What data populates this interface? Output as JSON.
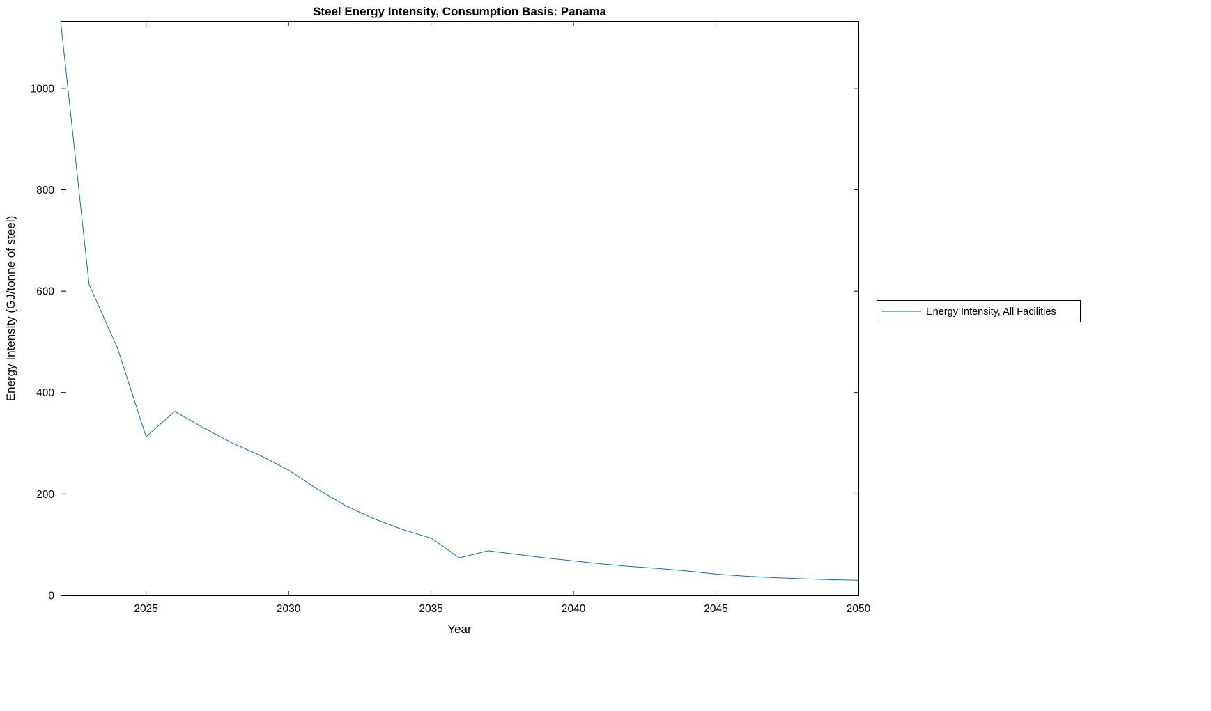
{
  "chart_data": {
    "type": "line",
    "title": "Steel Energy Intensity, Consumption Basis: Panama",
    "xlabel": "Year",
    "ylabel": "Energy Intensity (GJ/tonne of steel)",
    "xlim": [
      2022,
      2050
    ],
    "ylim": [
      0,
      1133
    ],
    "xticks": [
      2025,
      2030,
      2035,
      2040,
      2045,
      2050
    ],
    "yticks": [
      0,
      200,
      400,
      600,
      800,
      1000
    ],
    "grid": false,
    "legend": {
      "position": "right-outside",
      "entries": [
        "Energy Intensity, All Facilities"
      ]
    },
    "series": [
      {
        "name": "Energy Intensity, All Facilities",
        "color": "#0072BD",
        "x": [
          2022,
          2023,
          2024,
          2025,
          2026,
          2027,
          2028,
          2029,
          2030,
          2031,
          2032,
          2033,
          2034,
          2035,
          2036,
          2037,
          2038,
          2039,
          2040,
          2041,
          2042,
          2043,
          2044,
          2045,
          2046,
          2047,
          2048,
          2049,
          2050
        ],
        "y": [
          1133,
          613,
          487,
          313,
          363,
          331,
          301,
          276,
          247,
          210,
          177,
          151,
          130,
          113,
          74,
          88,
          81,
          74,
          68,
          62,
          57,
          53,
          48,
          42,
          38,
          35,
          33,
          31,
          30
        ]
      }
    ]
  }
}
